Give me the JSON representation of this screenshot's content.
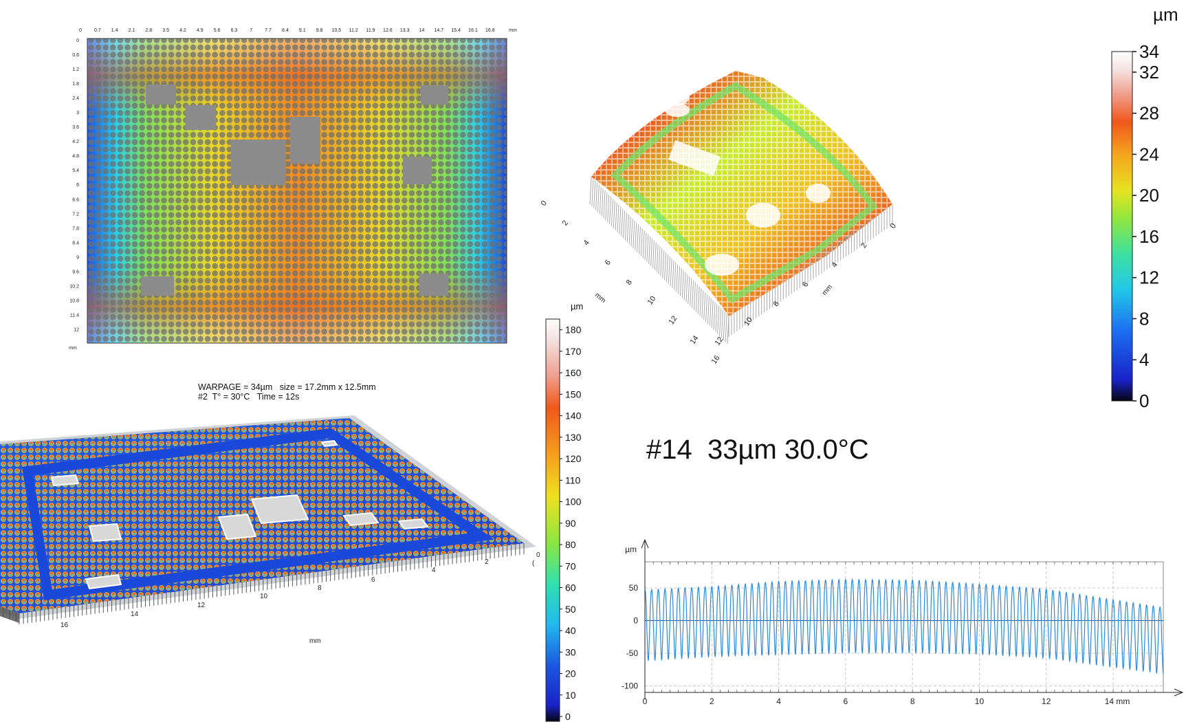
{
  "warpage_info": {
    "line1": "WARPAGE = 34µm   size = 17.2mm x 12.5mm",
    "line2": "#2  T° = 30°C   Time = 12s"
  },
  "overlay_title": "#14  33µm 30.0°C",
  "colors": {
    "jet": [
      "#0a0820",
      "#1f2bd6",
      "#1b6ff0",
      "#25b8f0",
      "#2fe0c0",
      "#6fe46a",
      "#c9ec2e",
      "#f7d021",
      "#f58e1e",
      "#f05a1c",
      "#f0906c",
      "#f6d8d6",
      "#ffffff"
    ]
  },
  "chart_data": [
    {
      "type": "heatmap",
      "name": "2d-map",
      "x_ticks": [
        "0",
        "0.7",
        "1.4",
        "2.1",
        "2.8",
        "3.5",
        "4.2",
        "4.9",
        "5.6",
        "6.3",
        "7",
        "7.7",
        "8.4",
        "9.1",
        "9.8",
        "10.5",
        "11.2",
        "11.9",
        "12.6",
        "13.3",
        "14",
        "14.7",
        "15.4",
        "16.1",
        "16.8"
      ],
      "x_unit": "mm",
      "y_ticks": [
        "0",
        "0.6",
        "1.2",
        "1.8",
        "2.4",
        "3",
        "3.6",
        "4.2",
        "4.8",
        "5.4",
        "6",
        "6.6",
        "7.2",
        "7.8",
        "8.4",
        "9",
        "9.6",
        "10.2",
        "10.8",
        "11.4",
        "12"
      ],
      "y_unit": "mm",
      "xlim": [
        0,
        17.2
      ],
      "ylim": [
        0,
        12.5
      ]
    },
    {
      "type": "heatmap",
      "name": "3d-warpage-surface",
      "axis_ticks_left": [
        "0",
        "2",
        "4",
        "6",
        "8",
        "10",
        "12",
        "14",
        "16"
      ],
      "axis_ticks_right": [
        "0",
        "2",
        "4",
        "6",
        "8",
        "10",
        "12"
      ],
      "axis_unit": "mm"
    },
    {
      "type": "heatmap",
      "name": "colorbar-warpage",
      "unit": "µm",
      "ticks": [
        "0",
        "4",
        "8",
        "12",
        "16",
        "20",
        "24",
        "28",
        "32",
        "34"
      ],
      "range": [
        0,
        34
      ]
    },
    {
      "type": "heatmap",
      "name": "3d-bump-height",
      "axis_ticks_left": [
        "0",
        "2",
        "4",
        "6",
        "8",
        "10",
        "12",
        "14",
        "16"
      ],
      "axis_unit": "mm"
    },
    {
      "type": "heatmap",
      "name": "colorbar-bump-height",
      "unit": "µm",
      "ticks": [
        "0",
        "10",
        "20",
        "30",
        "40",
        "50",
        "60",
        "70",
        "80",
        "90",
        "100",
        "110",
        "120",
        "130",
        "140",
        "150",
        "160",
        "170",
        "180"
      ],
      "range": [
        0,
        185
      ]
    },
    {
      "type": "line",
      "name": "height-profile",
      "ylabel": "µm",
      "x_ticks": [
        "0",
        "2",
        "4",
        "6",
        "8",
        "10",
        "12",
        "14 mm"
      ],
      "y_ticks": [
        "50",
        "0",
        "-50",
        "-100"
      ],
      "xlim": [
        0,
        15.5
      ],
      "ylim": [
        -110,
        90
      ],
      "series": [
        {
          "bump_pitch_mm": 0.2,
          "x_start": 0.0,
          "x_end": 15.5,
          "peaks_envelope_x": [
            0,
            2,
            4,
            6,
            8,
            10,
            12,
            14,
            15.5
          ],
          "peaks_envelope_y": [
            47,
            52,
            60,
            63,
            62,
            56,
            48,
            32,
            20
          ],
          "troughs_envelope_x": [
            0,
            2,
            4,
            6,
            8,
            10,
            12,
            14,
            15.5
          ],
          "troughs_envelope_y": [
            -62,
            -56,
            -53,
            -50,
            -50,
            -52,
            -58,
            -72,
            -82
          ]
        }
      ]
    }
  ]
}
